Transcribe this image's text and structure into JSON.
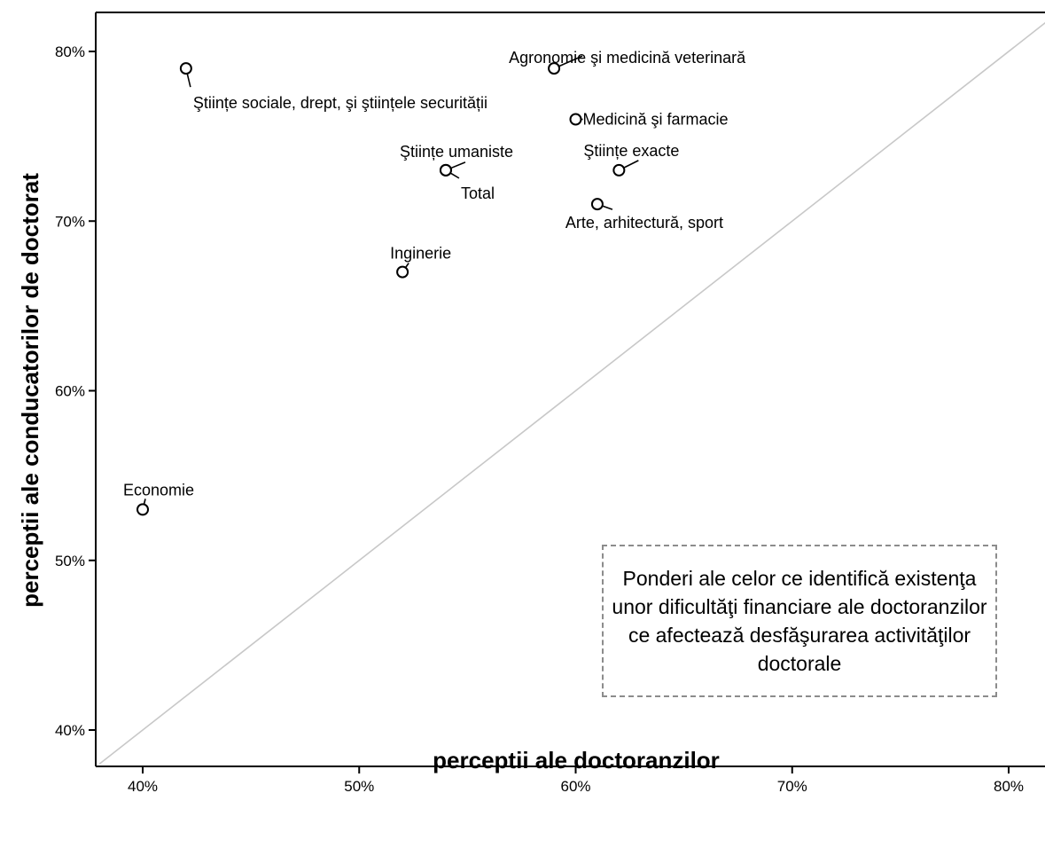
{
  "chart_data": {
    "type": "scatter",
    "xlabel": "perceptii ale doctoranzilor",
    "ylabel": "perceptii ale conducatorilor de doctorat",
    "xlim": [
      0.38,
      0.82
    ],
    "ylim": [
      0.38,
      0.81
    ],
    "x_ticks": [
      {
        "value": 0.4,
        "label": "40%"
      },
      {
        "value": 0.5,
        "label": "50%"
      },
      {
        "value": 0.6,
        "label": "60%"
      },
      {
        "value": 0.7,
        "label": "70%"
      },
      {
        "value": 0.8,
        "label": "80%"
      }
    ],
    "y_ticks": [
      {
        "value": 0.4,
        "label": "40%"
      },
      {
        "value": 0.5,
        "label": "50%"
      },
      {
        "value": 0.6,
        "label": "60%"
      },
      {
        "value": 0.7,
        "label": "70%"
      },
      {
        "value": 0.8,
        "label": "80%"
      }
    ],
    "reference_line": "y = x",
    "grid": false,
    "annotation": "Ponderi ale celor ce identifică existenţa unor dificultăţi financiare ale doctoranzilor ce afectează desfăşurarea activităţilor doctorale",
    "points": [
      {
        "label": "Agronomie şi medicină veterinară",
        "x": 0.59,
        "y": 0.79
      },
      {
        "label": "Ştiințe sociale, drept, şi ştiințele securității",
        "x": 0.42,
        "y": 0.79
      },
      {
        "label": "Medicină şi farmacie",
        "x": 0.6,
        "y": 0.76
      },
      {
        "label": "Ştiințe umaniste",
        "x": 0.54,
        "y": 0.73
      },
      {
        "label": "Total",
        "x": 0.54,
        "y": 0.73
      },
      {
        "label": "Ştiințe exacte",
        "x": 0.62,
        "y": 0.73
      },
      {
        "label": "Arte, arhitectură, sport",
        "x": 0.61,
        "y": 0.71
      },
      {
        "label": "Inginerie",
        "x": 0.52,
        "y": 0.67
      },
      {
        "label": "Economie",
        "x": 0.4,
        "y": 0.53
      }
    ]
  }
}
